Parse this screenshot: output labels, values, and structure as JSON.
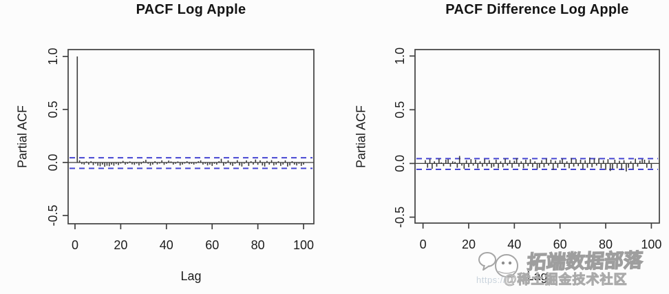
{
  "page": {
    "background": "#fcfcfc"
  },
  "watermark": {
    "brand_text": "拓端数据部落",
    "community_text": "@稀土掘金技术社区",
    "url_fragment": "https://",
    "logo": "bird-speech-bubble-logo"
  },
  "chart_data": [
    {
      "type": "bar",
      "title": "PACF Log Apple",
      "xlabel": "Lag",
      "ylabel": "Partial ACF",
      "x_ticks": [
        0,
        20,
        40,
        60,
        80,
        100
      ],
      "y_ticks": [
        1.0,
        0.5,
        0.0,
        -0.5
      ],
      "xlim": [
        -3,
        104.5
      ],
      "ylim": [
        -0.578,
        1.065
      ],
      "grid": false,
      "legend": "none",
      "conf_bands": [
        0.045,
        -0.055
      ],
      "conf_band_style": "dashed",
      "conf_band_color": "#4545d2",
      "bar_color": "#3a3a3a",
      "axis_color": "#3f3f3f",
      "lags_start": 1,
      "values": [
        1.0,
        0.02,
        -0.015,
        -0.02,
        0.01,
        -0.02,
        0.012,
        -0.025,
        -0.01,
        -0.03,
        -0.035,
        -0.02,
        -0.04,
        -0.03,
        -0.035,
        -0.02,
        -0.03,
        -0.015,
        -0.025,
        -0.01,
        0.015,
        -0.02,
        -0.012,
        0.01,
        -0.018,
        -0.022,
        -0.01,
        -0.028,
        -0.015,
        0.012,
        0.025,
        -0.012,
        -0.03,
        -0.02,
        0.012,
        -0.018,
        -0.01,
        0.02,
        -0.022,
        -0.012,
        0.018,
        0.01,
        -0.02,
        -0.012,
        0.01,
        -0.028,
        -0.02,
        -0.01,
        0.012,
        -0.015,
        -0.012,
        -0.02,
        -0.01,
        0.012,
        0.02,
        -0.02,
        -0.012,
        -0.028,
        -0.02,
        -0.032,
        -0.012,
        -0.02,
        0.012,
        0.035,
        -0.03,
        -0.012,
        0.02,
        -0.022,
        -0.032,
        -0.012,
        0.022,
        -0.028,
        -0.038,
        -0.012,
        0.02,
        -0.032,
        0.012,
        -0.02,
        0.028,
        -0.022,
        0.02,
        -0.028,
        -0.038,
        0.015,
        -0.02,
        0.022,
        -0.028,
        -0.02,
        0.012,
        -0.032,
        -0.02,
        0.02,
        -0.038,
        -0.028,
        0.012,
        -0.02,
        -0.028,
        -0.012,
        -0.032,
        -0.02
      ]
    },
    {
      "type": "bar",
      "title": "PACF Difference Log Apple",
      "xlabel": "Lag",
      "ylabel": "Partial ACF",
      "x_ticks": [
        0,
        20,
        40,
        60,
        80,
        100
      ],
      "y_ticks": [
        1.0,
        0.5,
        0.0,
        -0.5
      ],
      "xlim": [
        -3.5,
        103.5
      ],
      "ylim": [
        -0.555,
        1.06
      ],
      "grid": false,
      "legend": "none",
      "conf_bands": [
        0.045,
        -0.055
      ],
      "conf_band_style": "dashed",
      "conf_band_color": "#4545d2",
      "bar_color": "#3a3a3a",
      "axis_color": "#3f3f3f",
      "lags_start": 1,
      "values": [
        0.03,
        -0.04,
        0.04,
        -0.05,
        0.02,
        -0.03,
        0.045,
        0.01,
        -0.025,
        0.035,
        0.04,
        -0.03,
        0.02,
        0.015,
        -0.04,
        0.07,
        -0.02,
        -0.05,
        0.03,
        -0.035,
        0.04,
        -0.02,
        0.035,
        -0.045,
        0.02,
        -0.03,
        0.04,
        -0.025,
        0.03,
        -0.04,
        -0.03,
        0.035,
        -0.045,
        0.02,
        -0.035,
        0.045,
        -0.02,
        0.03,
        -0.04,
        0.025,
        0.05,
        -0.03,
        0.02,
        -0.045,
        0.035,
        -0.025,
        0.04,
        -0.035,
        0.02,
        -0.05,
        -0.04,
        0.03,
        -0.035,
        0.045,
        -0.02,
        0.035,
        -0.06,
        0.025,
        -0.04,
        0.03,
        0.045,
        -0.035,
        0.02,
        -0.045,
        0.05,
        -0.03,
        0.04,
        -0.025,
        0.035,
        -0.05,
        0.03,
        -0.04,
        0.055,
        -0.035,
        0.045,
        -0.02,
        0.05,
        -0.045,
        0.03,
        -0.06,
        0.04,
        -0.07,
        -0.05,
        0.035,
        -0.045,
        0.025,
        -0.06,
        0.03,
        -0.075,
        -0.04,
        0.02,
        -0.05,
        0.045,
        -0.03,
        0.025,
        0.04,
        0.035,
        -0.04,
        0.03,
        -0.045
      ]
    }
  ]
}
